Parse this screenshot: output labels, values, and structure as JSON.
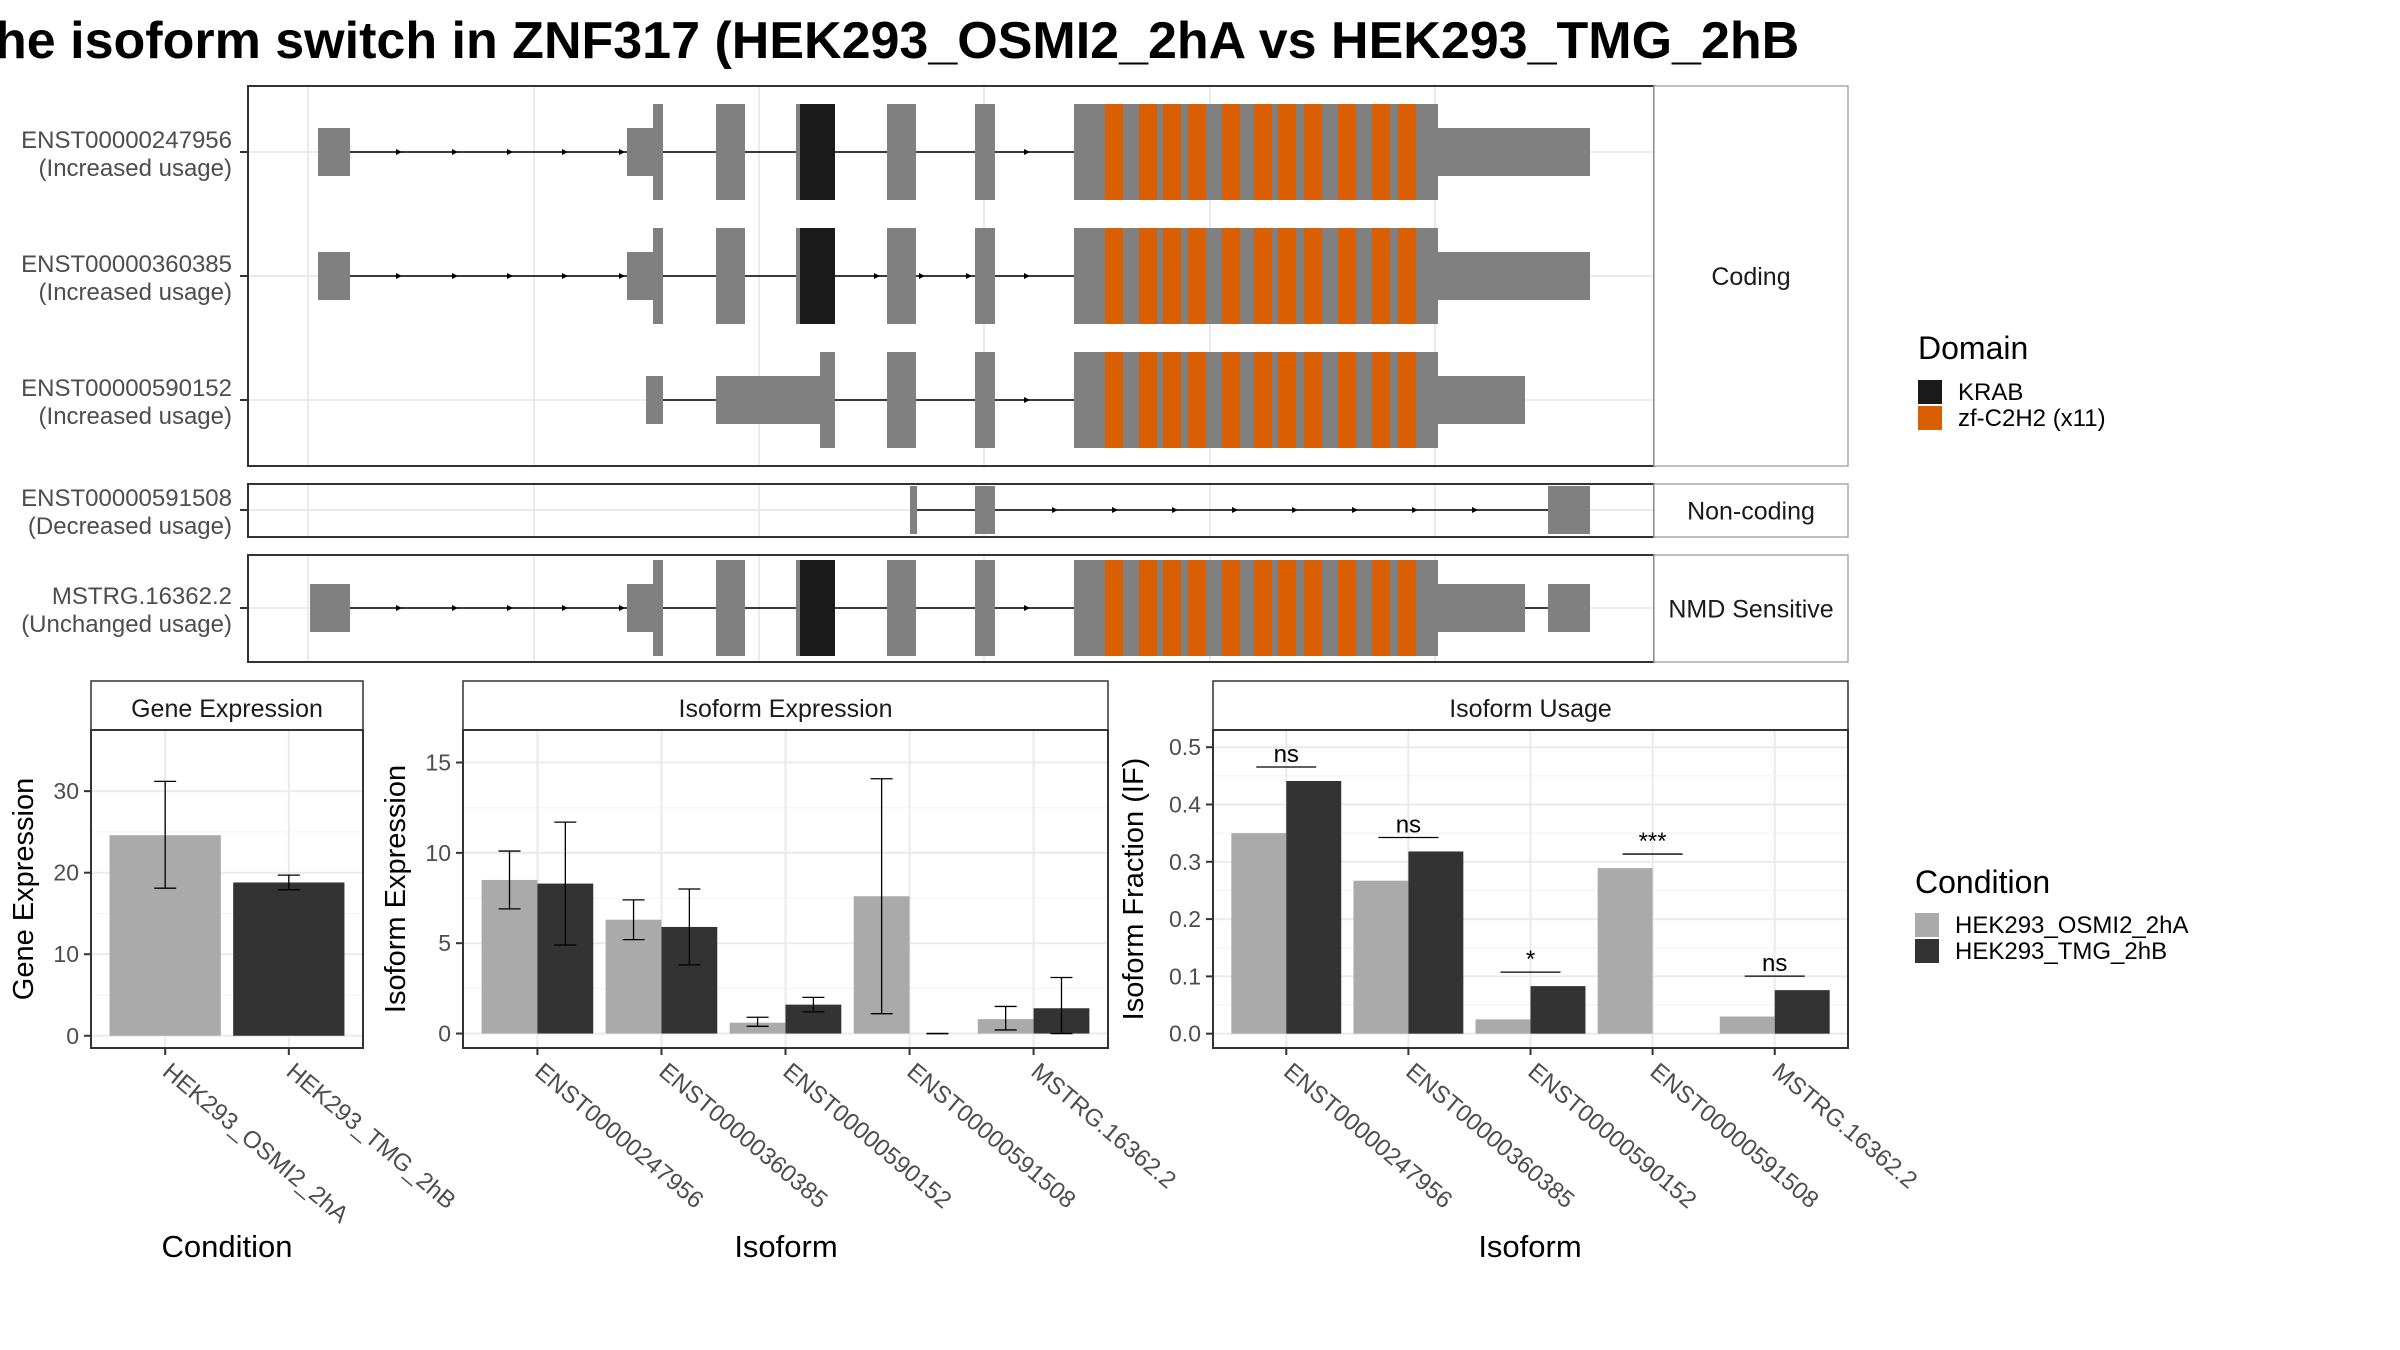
{
  "title": "he isoform switch in ZNF317 (HEK293_OSMI2_2hA vs HEK293_TMG_2hB",
  "colors": {
    "exon": "#808080",
    "krab": "#1a1a1a",
    "znf": "#d95f02",
    "cond1": "#aaaaaa",
    "cond2": "#333333",
    "grid": "#ebebeb",
    "strip_text": "#1a1a1a",
    "axis_text": "#4d4d4d"
  },
  "structure": {
    "panels": [
      {
        "label": "Coding",
        "rows": 3
      },
      {
        "label": "Non-coding",
        "rows": 1
      },
      {
        "label": "NMD Sensitive",
        "rows": 1
      }
    ],
    "transcripts": [
      {
        "id": "ENST00000247956",
        "usage": "(Increased usage)",
        "panel": 0
      },
      {
        "id": "ENST00000360385",
        "usage": "(Increased usage)",
        "panel": 0
      },
      {
        "id": "ENST00000590152",
        "usage": "(Increased usage)",
        "panel": 0
      },
      {
        "id": "ENST00000591508",
        "usage": "(Decreased usage)",
        "panel": 1
      },
      {
        "id": "MSTRG.16362.2",
        "usage": "(Unchanged usage)",
        "panel": 2
      }
    ],
    "legend_title": "Domain",
    "legend_items": [
      {
        "label": "KRAB",
        "color": "#1a1a1a"
      },
      {
        "label": "zf-C2H2 (x11)",
        "color": "#d95f02"
      }
    ]
  },
  "condition_legend": {
    "title": "Condition",
    "items": [
      {
        "label": "HEK293_OSMI2_2hA",
        "color": "#aaaaaa"
      },
      {
        "label": "HEK293_TMG_2hB",
        "color": "#333333"
      }
    ]
  },
  "chart_data": [
    {
      "type": "bar",
      "strip": "Gene Expression",
      "xlabel": "Condition",
      "ylabel": "Gene Expression",
      "categories": [
        "HEK293_OSMI2_2hA",
        "HEK293_TMG_2hB"
      ],
      "values": [
        24.6,
        18.8
      ],
      "err_low": [
        18.1,
        17.9
      ],
      "err_high": [
        31.2,
        19.7
      ],
      "ylim": [
        -1.5,
        37.5
      ],
      "yticks": [
        0,
        10,
        20,
        30
      ]
    },
    {
      "type": "bar",
      "strip": "Isoform Expression",
      "xlabel": "Isoform",
      "ylabel": "Isoform Expression",
      "categories": [
        "ENST00000247956",
        "ENST00000360385",
        "ENST00000590152",
        "ENST00000591508",
        "MSTRG.16362.2"
      ],
      "series": [
        {
          "name": "HEK293_OSMI2_2hA",
          "values": [
            8.5,
            6.3,
            0.6,
            7.6,
            0.8
          ],
          "err_low": [
            6.9,
            5.2,
            0.4,
            1.1,
            0.2
          ],
          "err_high": [
            10.1,
            7.4,
            0.9,
            14.1,
            1.5
          ]
        },
        {
          "name": "HEK293_TMG_2hB",
          "values": [
            8.3,
            5.9,
            1.6,
            0.0,
            1.4
          ],
          "err_low": [
            4.9,
            3.8,
            1.2,
            0.0,
            0.0
          ],
          "err_high": [
            11.7,
            8.0,
            2.0,
            0.0,
            3.1
          ]
        }
      ],
      "ylim": [
        -0.8,
        16.8
      ],
      "yticks": [
        0,
        5,
        10,
        15
      ]
    },
    {
      "type": "bar",
      "strip": "Isoform Usage",
      "xlabel": "Isoform",
      "ylabel": "Isoform Fraction (IF)",
      "categories": [
        "ENST00000247956",
        "ENST00000360385",
        "ENST00000590152",
        "ENST00000591508",
        "MSTRG.16362.2"
      ],
      "series": [
        {
          "name": "HEK293_OSMI2_2hA",
          "values": [
            0.35,
            0.267,
            0.025,
            0.289,
            0.03
          ]
        },
        {
          "name": "HEK293_TMG_2hB",
          "values": [
            0.441,
            0.318,
            0.083,
            0.0,
            0.076
          ]
        }
      ],
      "significance": [
        "ns",
        "ns",
        "*",
        "***",
        "ns"
      ],
      "ylim": [
        -0.025,
        0.53
      ],
      "yticks": [
        0.0,
        0.1,
        0.2,
        0.3,
        0.4,
        0.5
      ],
      "ytick_labels": [
        "0.0",
        "0.1",
        "0.2",
        "0.3",
        "0.4",
        "0.5"
      ]
    }
  ]
}
